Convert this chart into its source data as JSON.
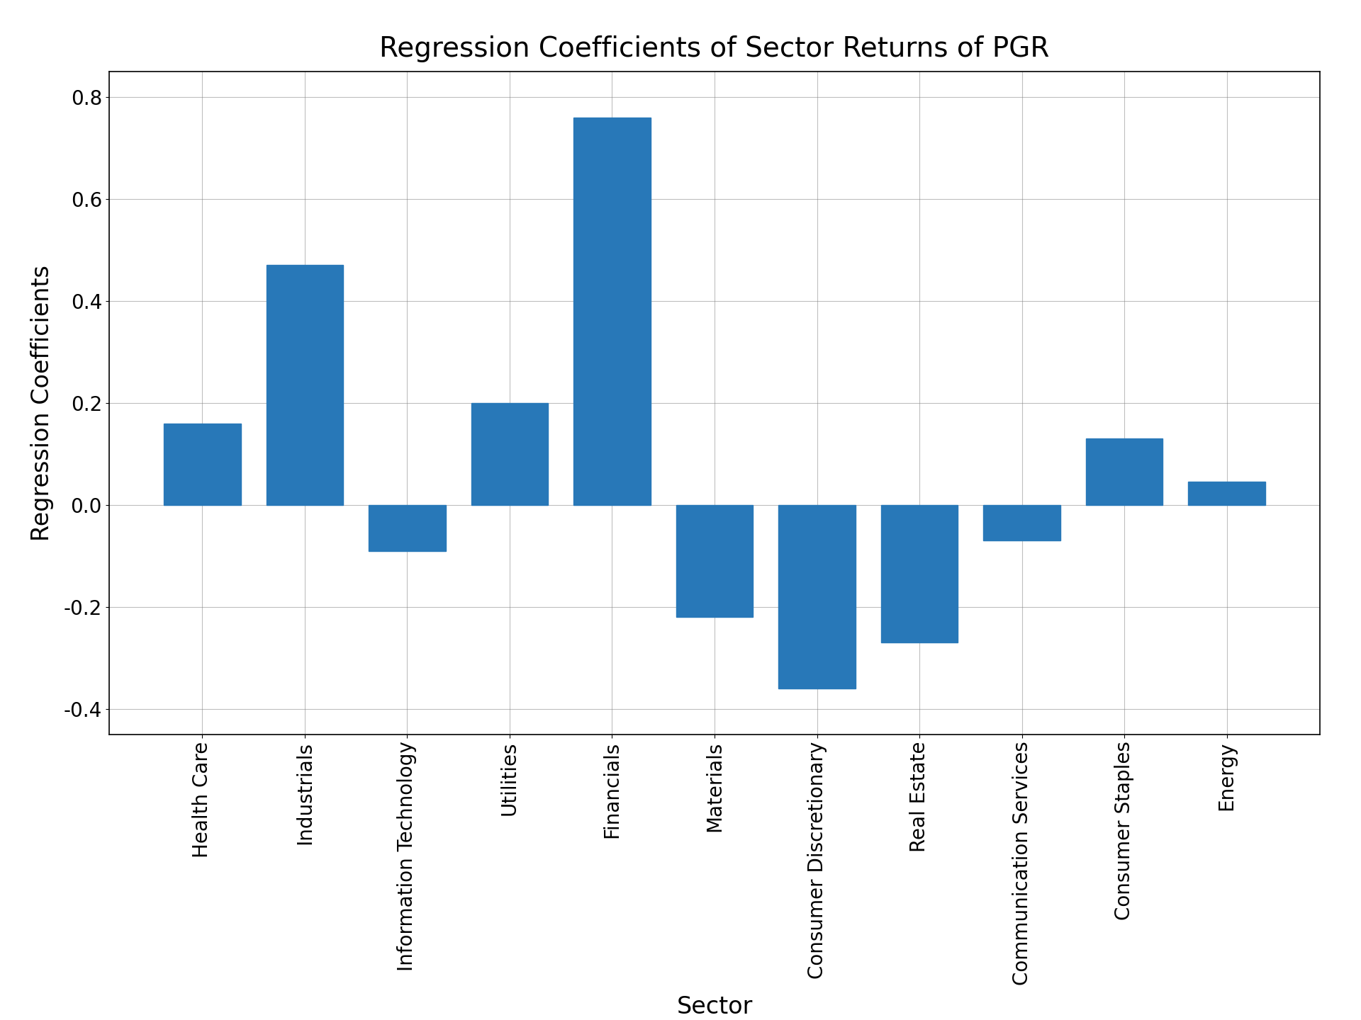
{
  "title": "Regression Coefficients of Sector Returns of PGR",
  "xlabel": "Sector",
  "ylabel": "Regression Coefficients",
  "categories": [
    "Health Care",
    "Industrials",
    "Information Technology",
    "Utilities",
    "Financials",
    "Materials",
    "Consumer Discretionary",
    "Real Estate",
    "Communication Services",
    "Consumer Staples",
    "Energy"
  ],
  "values": [
    0.16,
    0.47,
    -0.09,
    0.2,
    0.76,
    -0.22,
    -0.36,
    -0.27,
    -0.07,
    0.13,
    0.045
  ],
  "bar_color": "#2878b8",
  "ylim": [
    -0.45,
    0.85
  ],
  "yticks": [
    -0.4,
    -0.2,
    0.0,
    0.2,
    0.4,
    0.6,
    0.8
  ],
  "title_fontsize": 28,
  "label_fontsize": 24,
  "tick_fontsize": 20,
  "bar_width": 0.75,
  "grid": true,
  "background_color": "#ffffff"
}
